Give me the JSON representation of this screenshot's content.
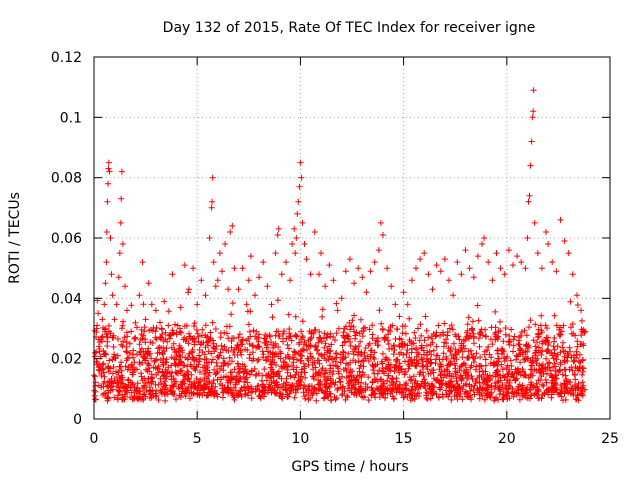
{
  "chart_data": {
    "type": "scatter",
    "title": "Day 132 of 2015, Rate Of TEC Index for receiver igne",
    "xlabel": "GPS time / hours",
    "ylabel": "ROTI / TECUs",
    "xlim": [
      0,
      25
    ],
    "ylim": [
      0,
      0.12
    ],
    "xticks": [
      0,
      5,
      10,
      15,
      20,
      25
    ],
    "xtick_labels": [
      "0",
      "5",
      "10",
      "15",
      "20",
      "25"
    ],
    "yticks": [
      0,
      0.02,
      0.04,
      0.06,
      0.08,
      0.1,
      0.12
    ],
    "ytick_labels": [
      "0",
      "0.02",
      "0.04",
      "0.06",
      "0.08",
      "0.1",
      "0.12"
    ],
    "grid": true,
    "marker": "+",
    "color": "#ff0000",
    "series": [
      {
        "points": [
          [
            0.05,
            0.014
          ],
          [
            0.1,
            0.022
          ],
          [
            0.15,
            0.031
          ],
          [
            0.2,
            0.035
          ],
          [
            0.25,
            0.018
          ],
          [
            0.35,
            0.027
          ],
          [
            0.4,
            0.033
          ],
          [
            0.5,
            0.038
          ],
          [
            0.55,
            0.045
          ],
          [
            0.6,
            0.052
          ],
          [
            0.62,
            0.062
          ],
          [
            0.65,
            0.072
          ],
          [
            0.68,
            0.078
          ],
          [
            0.7,
            0.083
          ],
          [
            0.72,
            0.085
          ],
          [
            0.75,
            0.082
          ],
          [
            0.8,
            0.06
          ],
          [
            0.85,
            0.048
          ],
          [
            0.9,
            0.041
          ],
          [
            1.0,
            0.033
          ],
          [
            1.1,
            0.038
          ],
          [
            1.2,
            0.047
          ],
          [
            1.25,
            0.055
          ],
          [
            1.3,
            0.065
          ],
          [
            1.32,
            0.073
          ],
          [
            1.35,
            0.082
          ],
          [
            1.4,
            0.058
          ],
          [
            1.5,
            0.044
          ],
          [
            1.6,
            0.036
          ],
          [
            1.8,
            0.029
          ],
          [
            2.0,
            0.027
          ],
          [
            2.2,
            0.041
          ],
          [
            2.35,
            0.052
          ],
          [
            2.5,
            0.033
          ],
          [
            2.65,
            0.045
          ],
          [
            2.8,
            0.038
          ],
          [
            3.0,
            0.036
          ],
          [
            3.2,
            0.032
          ],
          [
            3.4,
            0.039
          ],
          [
            3.6,
            0.031
          ],
          [
            3.8,
            0.048
          ],
          [
            4.0,
            0.028
          ],
          [
            4.2,
            0.037
          ],
          [
            4.4,
            0.051
          ],
          [
            4.6,
            0.043
          ],
          [
            4.8,
            0.05
          ],
          [
            5.0,
            0.038
          ],
          [
            5.2,
            0.046
          ],
          [
            5.4,
            0.041
          ],
          [
            5.6,
            0.06
          ],
          [
            5.7,
            0.07
          ],
          [
            5.72,
            0.072
          ],
          [
            5.75,
            0.08
          ],
          [
            5.8,
            0.052
          ],
          [
            5.9,
            0.044
          ],
          [
            6.0,
            0.046
          ],
          [
            6.1,
            0.055
          ],
          [
            6.2,
            0.049
          ],
          [
            6.35,
            0.058
          ],
          [
            6.5,
            0.043
          ],
          [
            6.6,
            0.062
          ],
          [
            6.7,
            0.064
          ],
          [
            6.8,
            0.05
          ],
          [
            7.0,
            0.043
          ],
          [
            7.2,
            0.05
          ],
          [
            7.4,
            0.038
          ],
          [
            7.5,
            0.046
          ],
          [
            7.6,
            0.054
          ],
          [
            7.8,
            0.041
          ],
          [
            8.0,
            0.047
          ],
          [
            8.2,
            0.052
          ],
          [
            8.4,
            0.044
          ],
          [
            8.6,
            0.038
          ],
          [
            8.8,
            0.055
          ],
          [
            8.9,
            0.061
          ],
          [
            8.95,
            0.063
          ],
          [
            9.1,
            0.048
          ],
          [
            9.3,
            0.052
          ],
          [
            9.5,
            0.046
          ],
          [
            9.6,
            0.058
          ],
          [
            9.7,
            0.063
          ],
          [
            9.75,
            0.055
          ],
          [
            9.8,
            0.06
          ],
          [
            9.85,
            0.068
          ],
          [
            9.9,
            0.072
          ],
          [
            9.95,
            0.077
          ],
          [
            10.0,
            0.085
          ],
          [
            10.05,
            0.08
          ],
          [
            10.1,
            0.065
          ],
          [
            10.2,
            0.058
          ],
          [
            10.3,
            0.053
          ],
          [
            10.5,
            0.048
          ],
          [
            10.7,
            0.062
          ],
          [
            10.9,
            0.048
          ],
          [
            11.0,
            0.055
          ],
          [
            11.2,
            0.044
          ],
          [
            11.4,
            0.051
          ],
          [
            11.6,
            0.046
          ],
          [
            11.8,
            0.036
          ],
          [
            12.0,
            0.04
          ],
          [
            12.2,
            0.049
          ],
          [
            12.4,
            0.053
          ],
          [
            12.6,
            0.045
          ],
          [
            12.8,
            0.05
          ],
          [
            13.0,
            0.047
          ],
          [
            13.2,
            0.042
          ],
          [
            13.4,
            0.049
          ],
          [
            13.6,
            0.052
          ],
          [
            13.8,
            0.056
          ],
          [
            13.9,
            0.065
          ],
          [
            14.0,
            0.061
          ],
          [
            14.2,
            0.05
          ],
          [
            14.4,
            0.044
          ],
          [
            14.6,
            0.038
          ],
          [
            14.8,
            0.034
          ],
          [
            15.0,
            0.042
          ],
          [
            15.2,
            0.038
          ],
          [
            15.4,
            0.046
          ],
          [
            15.6,
            0.05
          ],
          [
            15.8,
            0.053
          ],
          [
            16.0,
            0.055
          ],
          [
            16.2,
            0.048
          ],
          [
            16.4,
            0.043
          ],
          [
            16.6,
            0.051
          ],
          [
            16.8,
            0.049
          ],
          [
            17.0,
            0.053
          ],
          [
            17.2,
            0.046
          ],
          [
            17.4,
            0.041
          ],
          [
            17.6,
            0.052
          ],
          [
            17.8,
            0.048
          ],
          [
            18.0,
            0.056
          ],
          [
            18.2,
            0.05
          ],
          [
            18.4,
            0.047
          ],
          [
            18.6,
            0.054
          ],
          [
            18.8,
            0.058
          ],
          [
            18.9,
            0.06
          ],
          [
            19.1,
            0.052
          ],
          [
            19.3,
            0.046
          ],
          [
            19.5,
            0.055
          ],
          [
            19.7,
            0.05
          ],
          [
            19.9,
            0.048
          ],
          [
            20.1,
            0.056
          ],
          [
            20.3,
            0.051
          ],
          [
            20.5,
            0.054
          ],
          [
            20.7,
            0.052
          ],
          [
            20.9,
            0.05
          ],
          [
            21.0,
            0.06
          ],
          [
            21.05,
            0.072
          ],
          [
            21.1,
            0.074
          ],
          [
            21.15,
            0.084
          ],
          [
            21.2,
            0.092
          ],
          [
            21.25,
            0.1
          ],
          [
            21.28,
            0.102
          ],
          [
            21.3,
            0.109
          ],
          [
            21.35,
            0.065
          ],
          [
            21.5,
            0.055
          ],
          [
            21.7,
            0.05
          ],
          [
            21.9,
            0.062
          ],
          [
            22.0,
            0.058
          ],
          [
            22.2,
            0.052
          ],
          [
            22.4,
            0.049
          ],
          [
            22.6,
            0.066
          ],
          [
            22.8,
            0.059
          ],
          [
            23.0,
            0.055
          ],
          [
            23.2,
            0.048
          ],
          [
            23.4,
            0.041
          ],
          [
            23.6,
            0.036
          ],
          [
            23.8,
            0.029
          ]
        ]
      }
    ]
  }
}
